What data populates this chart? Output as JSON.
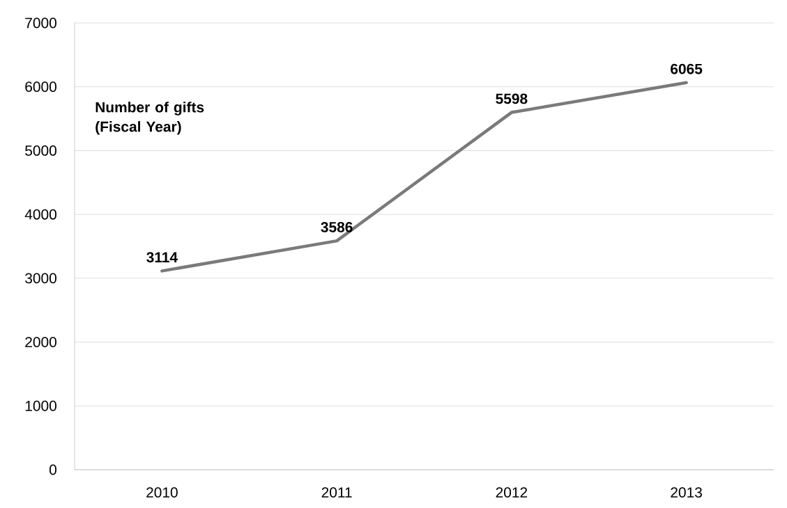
{
  "chart_data": {
    "type": "line",
    "title": "Number of gifts (Fiscal Year)",
    "categories": [
      "2010",
      "2011",
      "2012",
      "2013"
    ],
    "series": [
      {
        "color": "#7a7a7a",
        "values": [
          3114,
          3586,
          5598,
          6065
        ]
      }
    ],
    "ylim": [
      0,
      7000
    ],
    "yticks": [
      0,
      1000,
      2000,
      3000,
      4000,
      5000,
      6000,
      7000
    ],
    "grid": "y",
    "data_labels": true,
    "line_style": "solid"
  }
}
